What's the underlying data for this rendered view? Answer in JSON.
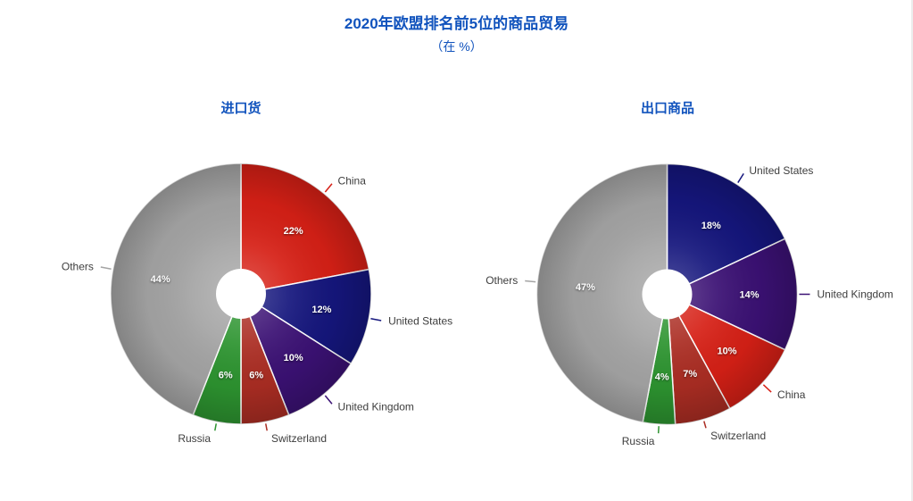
{
  "page": {
    "title": "2020年欧盟排名前5位的商品贸易",
    "subtitle": "（在 %）",
    "background_color": "#ffffff",
    "title_color": "#1153bd",
    "category_label_color": "#3d3d3d",
    "percent_label_color": "#ffffff"
  },
  "chart_data": [
    {
      "type": "pie",
      "title": "进口货",
      "unit": "%",
      "donut": true,
      "start_angle_deg": 0,
      "direction": "clockwise",
      "categories": [
        "China",
        "United States",
        "United Kingdom",
        "Switzerland",
        "Russia",
        "Others"
      ],
      "values": [
        22,
        12,
        10,
        6,
        6,
        44
      ],
      "labels": [
        "22%",
        "12%",
        "10%",
        "6%",
        "6%",
        "44%"
      ],
      "colors": [
        "#d62016",
        "#15167d",
        "#3b1174",
        "#ab2d23",
        "#2d9430",
        "#a4a4a4"
      ]
    },
    {
      "type": "pie",
      "title": "出口商品",
      "unit": "%",
      "donut": true,
      "start_angle_deg": 0,
      "direction": "clockwise",
      "categories": [
        "United States",
        "United Kingdom",
        "China",
        "Switzerland",
        "Russia",
        "Others"
      ],
      "values": [
        18,
        14,
        10,
        7,
        4,
        47
      ],
      "labels": [
        "18%",
        "14%",
        "10%",
        "7%",
        "4%",
        "47%"
      ],
      "colors": [
        "#15167d",
        "#3b1174",
        "#d62016",
        "#ab2d23",
        "#2d9430",
        "#a4a4a4"
      ]
    }
  ]
}
